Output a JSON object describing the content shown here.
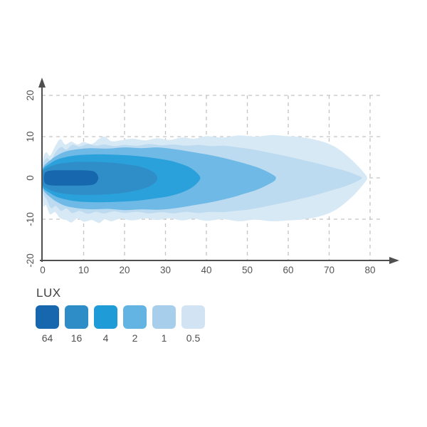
{
  "legend": {
    "title": "LUX",
    "entries": [
      {
        "value": "64",
        "color": "#1767ae"
      },
      {
        "value": "16",
        "color": "#2e8dc6"
      },
      {
        "value": "4",
        "color": "#1f9cd8"
      },
      {
        "value": "2",
        "color": "#63b3e3"
      },
      {
        "value": "1",
        "color": "#a7cfeb"
      },
      {
        "value": "0.5",
        "color": "#d2e4f3"
      }
    ]
  },
  "chart_data": {
    "type": "contour",
    "title": "",
    "xlabel": "",
    "ylabel": "",
    "xlim": [
      0,
      85
    ],
    "ylim": [
      -20,
      20
    ],
    "grid": true,
    "x_ticks": [
      0,
      10,
      20,
      30,
      40,
      50,
      60,
      70,
      80
    ],
    "y_ticks": [
      20,
      10,
      0,
      -10,
      -20
    ],
    "levels_lux": [
      64,
      16,
      4,
      2,
      1,
      0.5
    ],
    "axis_color": "#4f4f4f",
    "grid_color": "#c4c4c4",
    "tick_color": "#555555",
    "contours": [
      {
        "level": 0.5,
        "color": "#d8e9f6",
        "extent_x": 79,
        "outline": [
          [
            0,
            3.8
          ],
          [
            0.8,
            6.2
          ],
          [
            1.8,
            5.4
          ],
          [
            3,
            7.6
          ],
          [
            4.3,
            9.4
          ],
          [
            5.5,
            8.1
          ],
          [
            7,
            8.8
          ],
          [
            8.5,
            8.1
          ],
          [
            10,
            8.7
          ],
          [
            12,
            8.2
          ],
          [
            13.8,
            9.5
          ],
          [
            15.2,
            10
          ],
          [
            16.8,
            8.9
          ],
          [
            19,
            9.1
          ],
          [
            22,
            9.5
          ],
          [
            25,
            9.1
          ],
          [
            28,
            9.6
          ],
          [
            31,
            9.2
          ],
          [
            34,
            9.8
          ],
          [
            37,
            9.5
          ],
          [
            40,
            10.1
          ],
          [
            44,
            9.8
          ],
          [
            48,
            10.3
          ],
          [
            52,
            10
          ],
          [
            56,
            10.4
          ],
          [
            60,
            10.1
          ],
          [
            63,
            9.9
          ],
          [
            66,
            9.4
          ],
          [
            69,
            8.6
          ],
          [
            71.5,
            7.5
          ],
          [
            73.5,
            6.1
          ],
          [
            75.5,
            4.4
          ],
          [
            77.3,
            2.6
          ],
          [
            78.8,
            0.9
          ],
          [
            79.3,
            0
          ],
          [
            78.8,
            -1
          ],
          [
            77.3,
            -2.8
          ],
          [
            75.5,
            -4.7
          ],
          [
            73.5,
            -6.4
          ],
          [
            71.5,
            -7.8
          ],
          [
            69,
            -8.9
          ],
          [
            66,
            -9.7
          ],
          [
            63,
            -10.1
          ],
          [
            60,
            -10.3
          ],
          [
            56,
            -10.5
          ],
          [
            52,
            -10.1
          ],
          [
            48,
            -10.5
          ],
          [
            44,
            -10
          ],
          [
            40,
            -10.4
          ],
          [
            37,
            -9.9
          ],
          [
            34,
            -10.3
          ],
          [
            31,
            -9.8
          ],
          [
            28,
            -10.2
          ],
          [
            25,
            -9.8
          ],
          [
            22,
            -10.3
          ],
          [
            19,
            -9.9
          ],
          [
            16.8,
            -10.5
          ],
          [
            15.2,
            -10
          ],
          [
            13.8,
            -10.9
          ],
          [
            12,
            -10.2
          ],
          [
            10,
            -10.6
          ],
          [
            8.5,
            -9.8
          ],
          [
            7,
            -10.8
          ],
          [
            5.8,
            -10.2
          ],
          [
            4.3,
            -9.8
          ],
          [
            3,
            -8.3
          ],
          [
            1.8,
            -8.8
          ],
          [
            0.8,
            -6.6
          ],
          [
            0.2,
            -7
          ],
          [
            0,
            -4.5
          ]
        ]
      },
      {
        "level": 1,
        "color": "#bcdaf0",
        "extent_x": 78,
        "outline": [
          [
            0,
            2.8
          ],
          [
            1,
            4.8
          ],
          [
            2,
            4.3
          ],
          [
            3.2,
            6.3
          ],
          [
            4.5,
            7.5
          ],
          [
            5.8,
            6.9
          ],
          [
            7.2,
            8
          ],
          [
            9,
            7.6
          ],
          [
            11,
            8.2
          ],
          [
            13,
            7.8
          ],
          [
            15,
            8.1
          ],
          [
            17.5,
            7.7
          ],
          [
            20,
            8
          ],
          [
            23,
            7.8
          ],
          [
            26,
            8.2
          ],
          [
            29,
            7.9
          ],
          [
            32,
            8.1
          ],
          [
            35,
            7.8
          ],
          [
            38,
            8
          ],
          [
            41,
            7.7
          ],
          [
            44,
            7.8
          ],
          [
            47,
            7.5
          ],
          [
            50,
            7.1
          ],
          [
            53,
            6.6
          ],
          [
            56,
            6
          ],
          [
            59,
            5.4
          ],
          [
            62,
            4.7
          ],
          [
            65,
            4
          ],
          [
            68,
            3.3
          ],
          [
            71,
            2.5
          ],
          [
            74,
            1.7
          ],
          [
            76.5,
            0.8
          ],
          [
            78,
            0
          ],
          [
            76.5,
            -1
          ],
          [
            74,
            -2
          ],
          [
            71,
            -2.9
          ],
          [
            68,
            -3.8
          ],
          [
            65,
            -4.6
          ],
          [
            62,
            -5.3
          ],
          [
            59,
            -6
          ],
          [
            56,
            -6.6
          ],
          [
            53,
            -7.2
          ],
          [
            50,
            -7.7
          ],
          [
            47,
            -8
          ],
          [
            44,
            -8.3
          ],
          [
            41,
            -8.2
          ],
          [
            38,
            -8.5
          ],
          [
            35,
            -8.2
          ],
          [
            32,
            -8.6
          ],
          [
            29,
            -8.3
          ],
          [
            26,
            -8.6
          ],
          [
            23,
            -8.2
          ],
          [
            20,
            -8.5
          ],
          [
            17.5,
            -8.1
          ],
          [
            15,
            -8.6
          ],
          [
            13,
            -8.2
          ],
          [
            11,
            -8.7
          ],
          [
            9,
            -8
          ],
          [
            7.2,
            -8.5
          ],
          [
            5.8,
            -7.4
          ],
          [
            4.5,
            -8
          ],
          [
            3.2,
            -6.8
          ],
          [
            2,
            -7.3
          ],
          [
            1,
            -5.2
          ],
          [
            0,
            -3.2
          ]
        ]
      },
      {
        "level": 2,
        "color": "#6fb9e6",
        "extent_x": 57,
        "outline": [
          [
            0,
            2.2
          ],
          [
            2,
            4.4
          ],
          [
            4,
            5.7
          ],
          [
            6,
            6.5
          ],
          [
            9,
            7
          ],
          [
            12,
            7.2
          ],
          [
            16,
            7.1
          ],
          [
            20,
            7.4
          ],
          [
            24,
            7.2
          ],
          [
            28,
            7.4
          ],
          [
            31,
            7.1
          ],
          [
            34,
            6.7
          ],
          [
            37,
            6.2
          ],
          [
            40,
            5.7
          ],
          [
            43,
            5.1
          ],
          [
            46,
            4.4
          ],
          [
            49,
            3.6
          ],
          [
            52,
            2.7
          ],
          [
            54.5,
            1.7
          ],
          [
            56.5,
            0.6
          ],
          [
            57,
            0
          ],
          [
            56.5,
            -0.8
          ],
          [
            54.5,
            -1.9
          ],
          [
            52,
            -3
          ],
          [
            49,
            -3.9
          ],
          [
            46,
            -4.8
          ],
          [
            43,
            -5.5
          ],
          [
            40,
            -6.1
          ],
          [
            37,
            -6.6
          ],
          [
            34,
            -7.1
          ],
          [
            31,
            -7.5
          ],
          [
            28,
            -7.7
          ],
          [
            24,
            -7.6
          ],
          [
            20,
            -7.8
          ],
          [
            16,
            -7.5
          ],
          [
            12,
            -7.6
          ],
          [
            9,
            -7.4
          ],
          [
            6,
            -6.9
          ],
          [
            4,
            -6.1
          ],
          [
            2,
            -4.8
          ],
          [
            0,
            -2.5
          ]
        ]
      },
      {
        "level": 4,
        "color": "#2ba1db",
        "extent_x": 38.5,
        "outline": [
          [
            0,
            1.9
          ],
          [
            2,
            3.6
          ],
          [
            4,
            4.6
          ],
          [
            7,
            5.3
          ],
          [
            10,
            5.6
          ],
          [
            14,
            5.7
          ],
          [
            18,
            5.6
          ],
          [
            22,
            5.4
          ],
          [
            25,
            5.1
          ],
          [
            28,
            4.7
          ],
          [
            31,
            4.2
          ],
          [
            33.5,
            3.5
          ],
          [
            35.8,
            2.6
          ],
          [
            37.5,
            1.4
          ],
          [
            38.5,
            0
          ],
          [
            37.5,
            -1.5
          ],
          [
            35.8,
            -2.7
          ],
          [
            33.5,
            -3.7
          ],
          [
            31,
            -4.4
          ],
          [
            28,
            -4.9
          ],
          [
            25,
            -5.3
          ],
          [
            22,
            -5.6
          ],
          [
            18,
            -5.8
          ],
          [
            14,
            -5.9
          ],
          [
            10,
            -5.8
          ],
          [
            7,
            -5.5
          ],
          [
            4,
            -4.8
          ],
          [
            2,
            -3.8
          ],
          [
            0,
            -2.1
          ]
        ]
      },
      {
        "level": 16,
        "color": "#2f8ec7",
        "extent_x": 28,
        "outline": [
          [
            0,
            1.5
          ],
          [
            1.5,
            2.6
          ],
          [
            3.5,
            3.3
          ],
          [
            6,
            3.7
          ],
          [
            9,
            3.9
          ],
          [
            12,
            3.9
          ],
          [
            15,
            3.8
          ],
          [
            18,
            3.6
          ],
          [
            21,
            3.2
          ],
          [
            23.5,
            2.8
          ],
          [
            25.7,
            2.1
          ],
          [
            27.3,
            1.2
          ],
          [
            28,
            0
          ],
          [
            27.3,
            -1.3
          ],
          [
            25.7,
            -2.2
          ],
          [
            23.5,
            -2.9
          ],
          [
            21,
            -3.4
          ],
          [
            18,
            -3.8
          ],
          [
            15,
            -4
          ],
          [
            12,
            -4.1
          ],
          [
            9,
            -4.1
          ],
          [
            6,
            -3.9
          ],
          [
            3.5,
            -3.5
          ],
          [
            1.5,
            -2.8
          ],
          [
            0,
            -1.6
          ]
        ]
      },
      {
        "level": 64,
        "color": "#1767ae",
        "extent_x": 13.6,
        "outline": [
          [
            0.6,
            1.3
          ],
          [
            2,
            1.8
          ],
          [
            5,
            1.85
          ],
          [
            8,
            1.85
          ],
          [
            11,
            1.8
          ],
          [
            12.8,
            1.4
          ],
          [
            13.6,
            0
          ],
          [
            12.8,
            -1.4
          ],
          [
            11,
            -1.8
          ],
          [
            8,
            -1.85
          ],
          [
            5,
            -1.85
          ],
          [
            2,
            -1.8
          ],
          [
            0.6,
            -1.3
          ],
          [
            0.3,
            0
          ]
        ]
      }
    ]
  }
}
